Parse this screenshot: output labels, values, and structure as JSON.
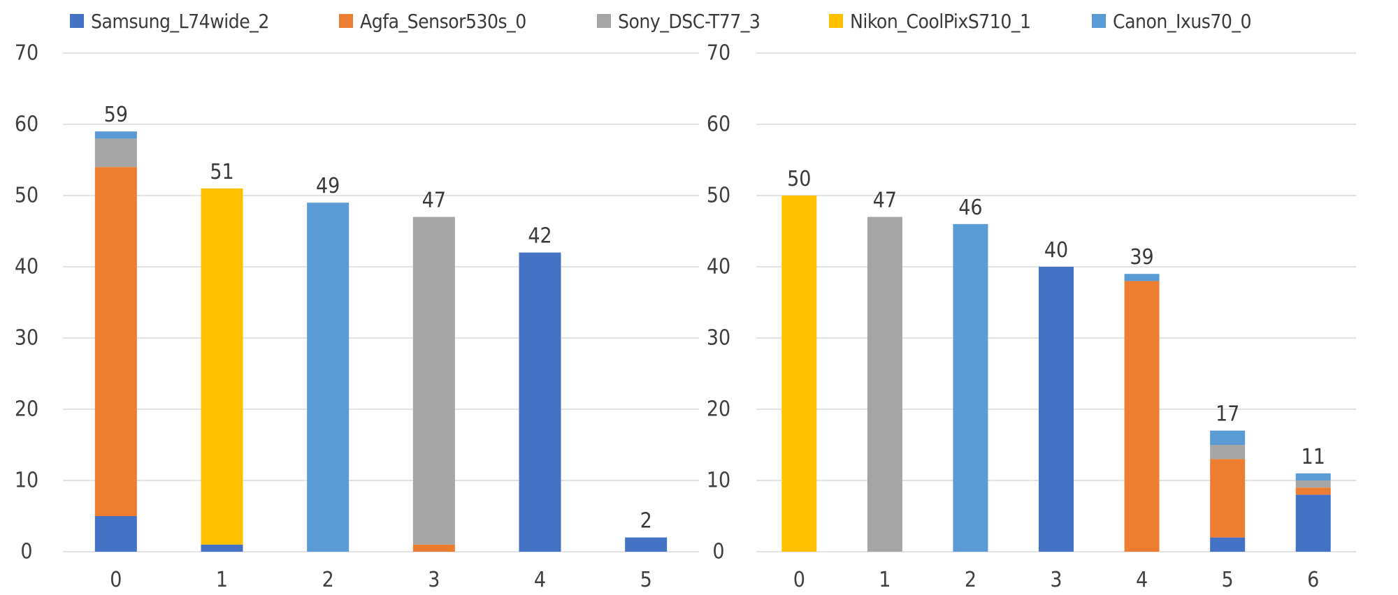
{
  "legend": {
    "items": [
      {
        "name": "Samsung_L74wide_2",
        "color": "#4472C4"
      },
      {
        "name": "Agfa_Sensor530s_0",
        "color": "#ED7D31"
      },
      {
        "name": "Sony_DSC-T77_3",
        "color": "#A5A5A5"
      },
      {
        "name": "Nikon_CoolPixS710_1",
        "color": "#FFC000"
      },
      {
        "name": "Canon_Ixus70_0",
        "color": "#5B9BD5"
      }
    ]
  },
  "chart_data": [
    {
      "type": "bar",
      "stacked": true,
      "title": "",
      "xlabel": "",
      "ylabel": "",
      "ylim": [
        0,
        70
      ],
      "yticks": [
        0,
        10,
        20,
        30,
        40,
        50,
        60,
        70
      ],
      "grid": true,
      "legend": "top",
      "categories": [
        "0",
        "1",
        "2",
        "3",
        "4",
        "5"
      ],
      "series": [
        {
          "name": "Samsung_L74wide_2",
          "values": [
            5,
            1,
            0,
            0,
            42,
            2
          ]
        },
        {
          "name": "Agfa_Sensor530s_0",
          "values": [
            49,
            0,
            0,
            1,
            0,
            0
          ]
        },
        {
          "name": "Sony_DSC-T77_3",
          "values": [
            4,
            0,
            0,
            46,
            0,
            0
          ]
        },
        {
          "name": "Nikon_CoolPixS710_1",
          "values": [
            0,
            50,
            0,
            0,
            0,
            0
          ]
        },
        {
          "name": "Canon_Ixus70_0",
          "values": [
            1,
            0,
            49,
            0,
            0,
            0
          ]
        }
      ],
      "totals": [
        59,
        51,
        49,
        47,
        42,
        2
      ]
    },
    {
      "type": "bar",
      "stacked": true,
      "title": "",
      "xlabel": "",
      "ylabel": "",
      "ylim": [
        0,
        70
      ],
      "yticks": [
        0,
        10,
        20,
        30,
        40,
        50,
        60,
        70
      ],
      "grid": true,
      "legend": "top",
      "categories": [
        "0",
        "1",
        "2",
        "3",
        "4",
        "5",
        "6"
      ],
      "series": [
        {
          "name": "Samsung_L74wide_2",
          "values": [
            0,
            0,
            0,
            40,
            0,
            2,
            8
          ]
        },
        {
          "name": "Agfa_Sensor530s_0",
          "values": [
            0,
            0,
            0,
            0,
            38,
            11,
            1
          ]
        },
        {
          "name": "Sony_DSC-T77_3",
          "values": [
            0,
            47,
            0,
            0,
            0,
            2,
            1
          ]
        },
        {
          "name": "Nikon_CoolPixS710_1",
          "values": [
            50,
            0,
            0,
            0,
            0,
            0,
            0
          ]
        },
        {
          "name": "Canon_Ixus70_0",
          "values": [
            0,
            0,
            46,
            0,
            1,
            2,
            1
          ]
        }
      ],
      "totals": [
        50,
        47,
        46,
        40,
        39,
        17,
        11
      ]
    }
  ]
}
